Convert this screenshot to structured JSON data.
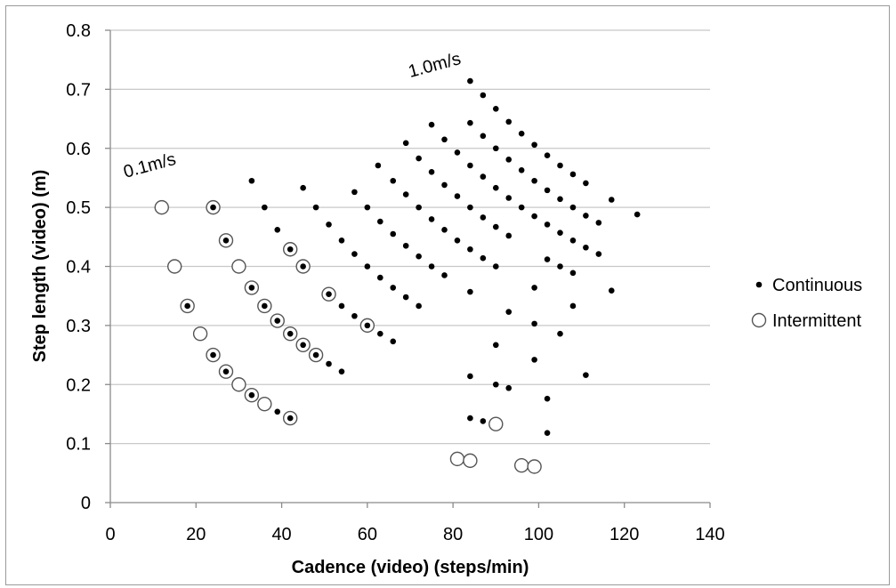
{
  "chart_data": {
    "type": "scatter",
    "xlabel": "Cadence (video) (steps/min)",
    "ylabel": "Step length (video) (m)",
    "xlim": [
      0,
      140
    ],
    "ylim": [
      0,
      0.8
    ],
    "x_ticks": [
      "0",
      "20",
      "40",
      "60",
      "80",
      "100",
      "120",
      "140"
    ],
    "y_ticks": [
      "0",
      "0.1",
      "0.2",
      "0.3",
      "0.4",
      "0.5",
      "0.6",
      "0.7",
      "0.8"
    ],
    "grid": "horizontal",
    "legend_position": "right",
    "annotations": [
      {
        "text": "0.1m/s",
        "x": 3.5,
        "y": 0.55,
        "rotation": -15
      },
      {
        "text": "1.0m/s",
        "x": 70,
        "y": 0.72,
        "rotation": -15
      }
    ],
    "series": [
      {
        "name": "Continuous",
        "marker": "dot",
        "color": "#000000",
        "points": [
          [
            24,
            0.5
          ],
          [
            27,
            0.444
          ],
          [
            33,
            0.364
          ],
          [
            36,
            0.333
          ],
          [
            39,
            0.308
          ],
          [
            42,
            0.286
          ],
          [
            45,
            0.267
          ],
          [
            48,
            0.25
          ],
          [
            51,
            0.235
          ],
          [
            54,
            0.222
          ],
          [
            33,
            0.545
          ],
          [
            36,
            0.5
          ],
          [
            39,
            0.462
          ],
          [
            42,
            0.429
          ],
          [
            45,
            0.4
          ],
          [
            18,
            0.333
          ],
          [
            24,
            0.25
          ],
          [
            27,
            0.222
          ],
          [
            33,
            0.182
          ],
          [
            39,
            0.154
          ],
          [
            42,
            0.143
          ],
          [
            45,
            0.533
          ],
          [
            48,
            0.5
          ],
          [
            51,
            0.471
          ],
          [
            54,
            0.444
          ],
          [
            57,
            0.421
          ],
          [
            60,
            0.4
          ],
          [
            63,
            0.381
          ],
          [
            66,
            0.364
          ],
          [
            69,
            0.348
          ],
          [
            72,
            0.333
          ],
          [
            51,
            0.353
          ],
          [
            54,
            0.333
          ],
          [
            57,
            0.316
          ],
          [
            60,
            0.3
          ],
          [
            63,
            0.286
          ],
          [
            66,
            0.273
          ],
          [
            57,
            0.526
          ],
          [
            60,
            0.5
          ],
          [
            63,
            0.476
          ],
          [
            66,
            0.455
          ],
          [
            69,
            0.435
          ],
          [
            72,
            0.417
          ],
          [
            75,
            0.4
          ],
          [
            78,
            0.385
          ],
          [
            62.5,
            0.571
          ],
          [
            66,
            0.545
          ],
          [
            69,
            0.522
          ],
          [
            72,
            0.5
          ],
          [
            75,
            0.48
          ],
          [
            78,
            0.462
          ],
          [
            81,
            0.444
          ],
          [
            84,
            0.429
          ],
          [
            87,
            0.414
          ],
          [
            90,
            0.4
          ],
          [
            69,
            0.609
          ],
          [
            72,
            0.583
          ],
          [
            75,
            0.56
          ],
          [
            78,
            0.538
          ],
          [
            81,
            0.519
          ],
          [
            84,
            0.5
          ],
          [
            87,
            0.483
          ],
          [
            90,
            0.467
          ],
          [
            93,
            0.452
          ],
          [
            75,
            0.64
          ],
          [
            78,
            0.615
          ],
          [
            81,
            0.593
          ],
          [
            84,
            0.571
          ],
          [
            87,
            0.552
          ],
          [
            90,
            0.533
          ],
          [
            93,
            0.516
          ],
          [
            96,
            0.5
          ],
          [
            99,
            0.485
          ],
          [
            102,
            0.471
          ],
          [
            105,
            0.457
          ],
          [
            108,
            0.444
          ],
          [
            111,
            0.432
          ],
          [
            114,
            0.421
          ],
          [
            84,
            0.714
          ],
          [
            87,
            0.69
          ],
          [
            90,
            0.667
          ],
          [
            93,
            0.645
          ],
          [
            96,
            0.625
          ],
          [
            99,
            0.606
          ],
          [
            102,
            0.588
          ],
          [
            105,
            0.571
          ],
          [
            108,
            0.556
          ],
          [
            111,
            0.541
          ],
          [
            84,
            0.643
          ],
          [
            87,
            0.621
          ],
          [
            90,
            0.6
          ],
          [
            93,
            0.581
          ],
          [
            96,
            0.563
          ],
          [
            99,
            0.545
          ],
          [
            102,
            0.529
          ],
          [
            105,
            0.514
          ],
          [
            108,
            0.5
          ],
          [
            111,
            0.486
          ],
          [
            114,
            0.474
          ],
          [
            117,
            0.513
          ],
          [
            123,
            0.488
          ],
          [
            102,
            0.412
          ],
          [
            105,
            0.4
          ],
          [
            108,
            0.389
          ],
          [
            117,
            0.359
          ],
          [
            84,
            0.357
          ],
          [
            99,
            0.364
          ],
          [
            93,
            0.323
          ],
          [
            108,
            0.333
          ],
          [
            90,
            0.267
          ],
          [
            99,
            0.303
          ],
          [
            105,
            0.286
          ],
          [
            84,
            0.214
          ],
          [
            90,
            0.2
          ],
          [
            93,
            0.194
          ],
          [
            99,
            0.242
          ],
          [
            102,
            0.176
          ],
          [
            111,
            0.216
          ],
          [
            84,
            0.143
          ],
          [
            87,
            0.138
          ],
          [
            102,
            0.118
          ]
        ]
      },
      {
        "name": "Intermittent",
        "marker": "open-circle",
        "color": "#000000",
        "points": [
          [
            12,
            0.5
          ],
          [
            24,
            0.5
          ],
          [
            27,
            0.444
          ],
          [
            15,
            0.4
          ],
          [
            30,
            0.4
          ],
          [
            42,
            0.429
          ],
          [
            45,
            0.4
          ],
          [
            33,
            0.364
          ],
          [
            36,
            0.333
          ],
          [
            39,
            0.308
          ],
          [
            42,
            0.286
          ],
          [
            45,
            0.267
          ],
          [
            48,
            0.25
          ],
          [
            51,
            0.353
          ],
          [
            60,
            0.3
          ],
          [
            18,
            0.333
          ],
          [
            21,
            0.286
          ],
          [
            24,
            0.25
          ],
          [
            27,
            0.222
          ],
          [
            30,
            0.2
          ],
          [
            33,
            0.182
          ],
          [
            36,
            0.167
          ],
          [
            42,
            0.143
          ],
          [
            90,
            0.133
          ],
          [
            81,
            0.074
          ],
          [
            84,
            0.071
          ],
          [
            96,
            0.063
          ],
          [
            99,
            0.061
          ]
        ]
      }
    ]
  }
}
